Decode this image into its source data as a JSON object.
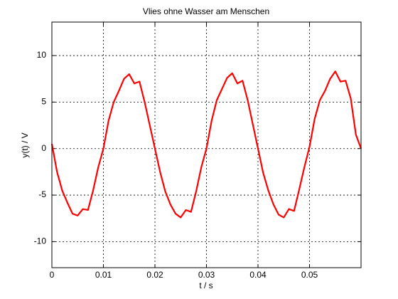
{
  "chart_data": {
    "type": "line",
    "title": "Vlies ohne Wasser am Menschen",
    "x_label": "t / s",
    "y_label": "y(t) / V",
    "x": [
      0,
      0.001,
      0.002,
      0.003,
      0.004,
      0.005,
      0.006,
      0.007,
      0.008,
      0.009,
      0.01,
      0.011,
      0.012,
      0.013,
      0.014,
      0.015,
      0.016,
      0.017,
      0.018,
      0.019,
      0.02,
      0.021,
      0.022,
      0.023,
      0.024,
      0.025,
      0.026,
      0.027,
      0.028,
      0.029,
      0.03,
      0.031,
      0.032,
      0.033,
      0.034,
      0.035,
      0.036,
      0.037,
      0.038,
      0.039,
      0.04,
      0.041,
      0.042,
      0.043,
      0.044,
      0.045,
      0.046,
      0.047,
      0.048,
      0.049,
      0.05,
      0.051,
      0.052,
      0.053,
      0.054,
      0.055,
      0.056,
      0.057,
      0.058,
      0.059,
      0.06
    ],
    "series": [
      {
        "color": "#ff0000",
        "values": [
          0.5,
          -2.5,
          -4.5,
          -5.8,
          -7.0,
          -7.2,
          -6.5,
          -6.6,
          -4.5,
          -2.0,
          0,
          3.0,
          5.0,
          6.2,
          7.5,
          8.0,
          7.0,
          7.2,
          5.0,
          2.5,
          0,
          -2.5,
          -4.6,
          -6.0,
          -7.0,
          -7.4,
          -6.6,
          -6.8,
          -4.6,
          -2.0,
          0,
          3.0,
          5.2,
          6.4,
          7.6,
          8.1,
          7.0,
          7.3,
          5.2,
          2.6,
          0,
          -2.6,
          -4.5,
          -6.0,
          -7.1,
          -7.4,
          -6.5,
          -6.7,
          -4.4,
          -2.0,
          0.2,
          3.2,
          5.2,
          6.2,
          7.5,
          8.3,
          7.2,
          7.3,
          5.4,
          1.5,
          0
        ]
      }
    ],
    "xlim": [
      0,
      0.06
    ],
    "ylim": [
      -12.8,
      13.6
    ],
    "xticks": [
      0,
      0.01,
      0.02,
      0.03,
      0.04,
      0.05
    ],
    "yticks": [
      -10,
      -5,
      0,
      5,
      10
    ],
    "grid": true
  }
}
